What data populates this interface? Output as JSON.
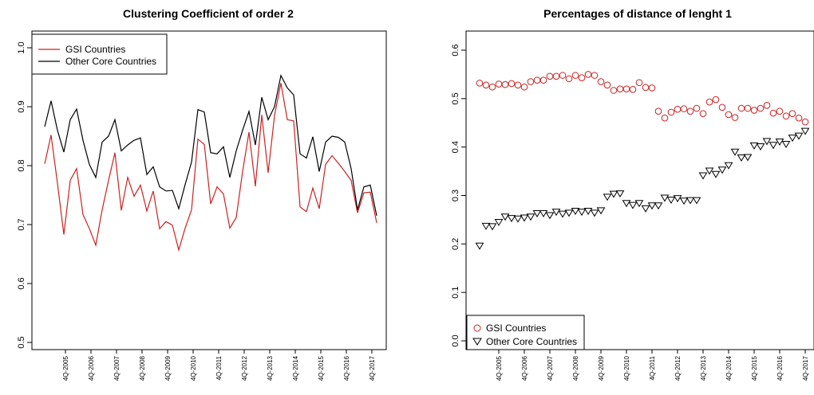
{
  "chart_data": [
    {
      "type": "line",
      "title": "Clustering Coefficient of order 2",
      "xlabel": "",
      "ylabel": "",
      "ylim": [
        0.5,
        1.0
      ],
      "yticks": [
        "0.5",
        "0.6",
        "0.7",
        "0.8",
        "0.9",
        "1.0"
      ],
      "xtick_labels": [
        "4Q-2005",
        "4Q-2006",
        "4Q-2007",
        "4Q-2008",
        "4Q-2009",
        "4Q-2010",
        "4Q-2011",
        "4Q-2012",
        "4Q-2013",
        "4Q-2014",
        "4Q-2015",
        "4Q-2016",
        "4Q-2017"
      ],
      "legend_position": "top-left",
      "series": [
        {
          "name": "GSI Countries",
          "color": "#cc2222",
          "values": [
            0.803,
            0.852,
            0.77,
            0.683,
            0.775,
            0.795,
            0.717,
            0.693,
            0.665,
            0.725,
            0.775,
            0.822,
            0.724,
            0.78,
            0.748,
            0.767,
            0.723,
            0.757,
            0.693,
            0.705,
            0.699,
            0.657,
            0.694,
            0.725,
            0.845,
            0.836,
            0.735,
            0.764,
            0.752,
            0.694,
            0.712,
            0.79,
            0.857,
            0.765,
            0.886,
            0.788,
            0.885,
            0.94,
            0.878,
            0.876,
            0.73,
            0.722,
            0.762,
            0.727,
            0.802,
            0.817,
            0.804,
            0.79,
            0.775,
            0.72,
            0.754,
            0.755,
            0.703
          ]
        },
        {
          "name": "Other Core Countries",
          "color": "#000000",
          "values": [
            0.866,
            0.91,
            0.86,
            0.823,
            0.878,
            0.896,
            0.843,
            0.802,
            0.78,
            0.84,
            0.85,
            0.878,
            0.825,
            0.835,
            0.843,
            0.847,
            0.785,
            0.798,
            0.764,
            0.757,
            0.758,
            0.727,
            0.768,
            0.806,
            0.895,
            0.891,
            0.822,
            0.82,
            0.832,
            0.78,
            0.825,
            0.86,
            0.892,
            0.835,
            0.916,
            0.878,
            0.9,
            0.953,
            0.932,
            0.92,
            0.82,
            0.813,
            0.849,
            0.79,
            0.84,
            0.85,
            0.848,
            0.84,
            0.795,
            0.725,
            0.764,
            0.767,
            0.715
          ]
        }
      ]
    },
    {
      "type": "scatter",
      "title": "Percentages of distance of lenght 1",
      "xlabel": "",
      "ylabel": "",
      "ylim": [
        0.0,
        0.6
      ],
      "yticks": [
        "0.0",
        "0.1",
        "0.2",
        "0.3",
        "0.4",
        "0.5",
        "0.6"
      ],
      "xtick_labels": [
        "4Q-2005",
        "4Q-2006",
        "4Q-2007",
        "4Q-2008",
        "4Q-2009",
        "4Q-2010",
        "4Q-2011",
        "4Q-2012",
        "4Q-2013",
        "4Q-2014",
        "4Q-2015",
        "4Q-2016",
        "4Q-2017"
      ],
      "legend_position": "bottom-left",
      "series": [
        {
          "name": "GSI Countries",
          "marker": "circle",
          "color": "#cc2222",
          "values": [
            0.532,
            0.528,
            0.524,
            0.53,
            0.529,
            0.531,
            0.528,
            0.524,
            0.535,
            0.538,
            0.538,
            0.546,
            0.546,
            0.548,
            0.541,
            0.548,
            0.543,
            0.55,
            0.548,
            0.535,
            0.528,
            0.517,
            0.52,
            0.52,
            0.519,
            0.533,
            0.523,
            0.522,
            0.474,
            0.46,
            0.472,
            0.478,
            0.479,
            0.474,
            0.48,
            0.469,
            0.493,
            0.498,
            0.482,
            0.467,
            0.461,
            0.48,
            0.48,
            0.476,
            0.48,
            0.486,
            0.47,
            0.474,
            0.464,
            0.469,
            0.46,
            0.452
          ]
        },
        {
          "name": "Other Core Countries",
          "marker": "triangle-down",
          "color": "#000000",
          "values": [
            0.196,
            0.237,
            0.236,
            0.245,
            0.256,
            0.253,
            0.252,
            0.254,
            0.256,
            0.263,
            0.263,
            0.259,
            0.266,
            0.262,
            0.264,
            0.268,
            0.266,
            0.268,
            0.264,
            0.269,
            0.297,
            0.303,
            0.304,
            0.284,
            0.28,
            0.284,
            0.273,
            0.279,
            0.279,
            0.295,
            0.291,
            0.294,
            0.289,
            0.29,
            0.29,
            0.341,
            0.351,
            0.344,
            0.353,
            0.362,
            0.39,
            0.378,
            0.379,
            0.403,
            0.401,
            0.412,
            0.404,
            0.411,
            0.406,
            0.419,
            0.423,
            0.433
          ]
        }
      ]
    }
  ]
}
